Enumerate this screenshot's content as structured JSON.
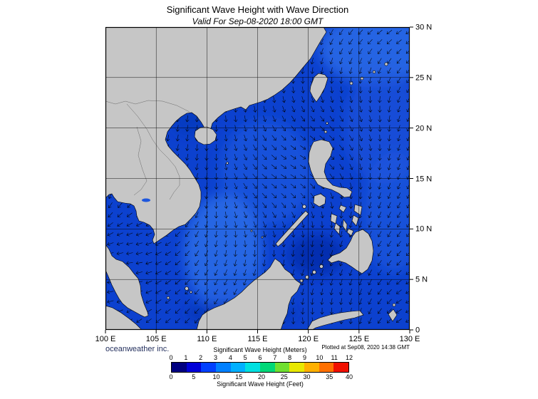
{
  "header": {
    "title": "Significant Wave Height with Wave Direction",
    "subtitle": "Valid For Sep-08-2020 18:00 GMT"
  },
  "map": {
    "lat_labels": [
      "30 N",
      "25 N",
      "20 N",
      "15 N",
      "10 N",
      "5 N",
      "0"
    ],
    "lon_labels": [
      "100 E",
      "105 E",
      "110 E",
      "115 E",
      "120 E",
      "125 E",
      "130 E"
    ],
    "plotted_at": "Plotted at Sep08, 2020 14:38 GMT",
    "ocean_color": "#0c41cf",
    "land_color": "#c6c6c6",
    "arrow_color": "#000000"
  },
  "footer": {
    "credit": "oceanweather inc."
  },
  "legend": {
    "meters_title": "Significant Wave Height (Meters)",
    "feet_title": "Significant Wave Height (Feet)",
    "meters_ticks": [
      "0",
      "1",
      "2",
      "3",
      "4",
      "5",
      "6",
      "7",
      "8",
      "9",
      "10",
      "11",
      "12"
    ],
    "feet_ticks": [
      "0",
      "5",
      "10",
      "15",
      "20",
      "25",
      "30",
      "35",
      "40"
    ],
    "segment_colors": [
      "#000080",
      "#0000d8",
      "#0040ff",
      "#0080ff",
      "#00b0ff",
      "#00e0e0",
      "#00d878",
      "#70e030",
      "#e8e800",
      "#ffb000",
      "#ff7000",
      "#f01000"
    ]
  }
}
